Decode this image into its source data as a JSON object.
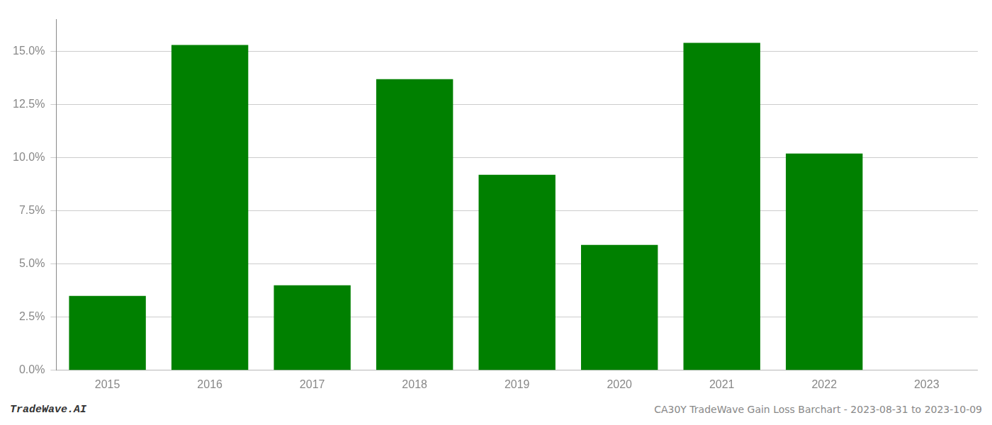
{
  "chart_data": {
    "type": "bar",
    "categories": [
      "2015",
      "2016",
      "2017",
      "2018",
      "2019",
      "2020",
      "2021",
      "2022",
      "2023"
    ],
    "values": [
      0.035,
      0.153,
      0.04,
      0.137,
      0.092,
      0.059,
      0.154,
      0.102,
      0.0
    ],
    "color": "#008000",
    "ylim": [
      0,
      0.165
    ],
    "yticks": [
      {
        "value": 0,
        "label": "0.0%"
      },
      {
        "value": 0.025,
        "label": "2.5%"
      },
      {
        "value": 0.05,
        "label": "5.0%"
      },
      {
        "value": 0.075,
        "label": "7.5%"
      },
      {
        "value": 0.1,
        "label": "10.0%"
      },
      {
        "value": 0.125,
        "label": "12.5%"
      },
      {
        "value": 0.15,
        "label": "15.0%"
      }
    ],
    "grid": true,
    "annotations": [
      "TradeWave.AI",
      "CA30Y TradeWave Gain Loss Barchart - 2023-08-31 to 2023-10-09"
    ]
  }
}
